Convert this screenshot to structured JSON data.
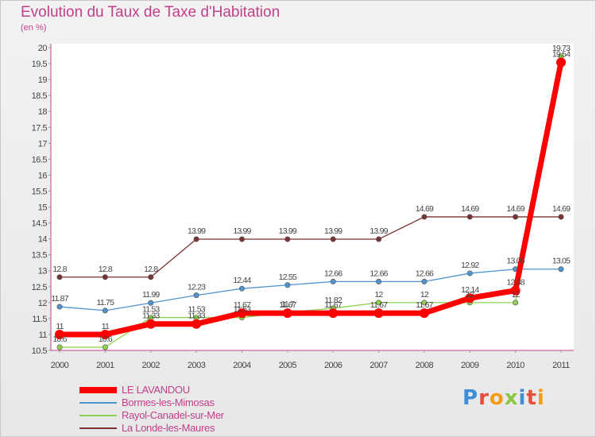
{
  "title": "Evolution du Taux de Taxe d'Habitation",
  "subtitle": "(en %)",
  "brand": "Proxiti",
  "chart_data": {
    "type": "line",
    "x": [
      "2000",
      "2001",
      "2002",
      "2003",
      "2004",
      "2005",
      "2006",
      "2007",
      "2008",
      "2009",
      "2010",
      "2011"
    ],
    "ylim": [
      10.5,
      20
    ],
    "yticks": [
      "10.5",
      "11",
      "11.5",
      "12",
      "12.5",
      "13",
      "13.5",
      "14",
      "14.5",
      "15",
      "15.5",
      "16",
      "16.5",
      "17",
      "17.5",
      "18",
      "18.5",
      "19",
      "19.5",
      "20"
    ],
    "grid": false,
    "legend_position": "bottom-left",
    "series": [
      {
        "name": "LE LAVANDOU",
        "color": "#ff0000",
        "values": [
          11,
          11,
          11.33,
          11.33,
          11.67,
          11.67,
          11.67,
          11.67,
          11.67,
          12.14,
          12.38,
          19.54
        ],
        "labels": [
          "11",
          "11",
          "11.33",
          "11.33",
          "11.67",
          "11.67",
          "11.67",
          "11.67",
          "11.67",
          "12.14",
          "12.38",
          "19.54"
        ]
      },
      {
        "name": "Bormes-les-Mimosas",
        "color": "#4f93cf",
        "values": [
          11.87,
          11.75,
          11.99,
          12.23,
          12.44,
          12.55,
          12.66,
          12.66,
          12.66,
          12.92,
          13.05,
          13.05
        ],
        "labels": [
          "11.87",
          "11.75",
          "11.99",
          "12.23",
          "12.44",
          "12.55",
          "12.66",
          "12.66",
          "12.66",
          "12.92",
          "13.05",
          "13.05"
        ]
      },
      {
        "name": "Rayol-Canadel-sur-Mer",
        "color": "#8fd14f",
        "values": [
          10.6,
          10.6,
          11.53,
          11.53,
          11.53,
          11.7,
          11.82,
          12,
          12,
          12,
          12,
          19.73
        ],
        "labels": [
          "10.6",
          "10.6",
          "11.53",
          "11.53",
          "11.53",
          "11.7",
          "11.82",
          "12",
          "12",
          "12",
          "12",
          "19.73"
        ]
      },
      {
        "name": "La Londe-les-Maures",
        "color": "#7a3333",
        "values": [
          12.8,
          12.8,
          12.8,
          13.99,
          13.99,
          13.99,
          13.99,
          13.99,
          14.69,
          14.69,
          14.69,
          14.69
        ],
        "labels": [
          "12.8",
          "12.8",
          "12.8",
          "13.99",
          "13.99",
          "13.99",
          "13.99",
          "13.99",
          "14.69",
          "14.69",
          "14.69",
          "14.69"
        ]
      }
    ]
  }
}
